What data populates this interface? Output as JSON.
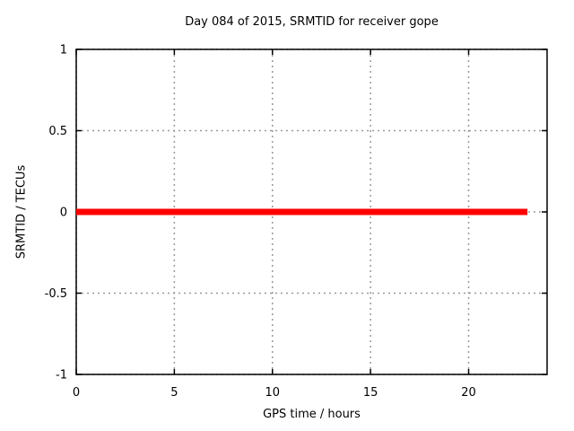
{
  "page": {
    "background": "#ffffff"
  },
  "chart_data": {
    "type": "line",
    "title": "Day 084 of 2015, SRMTID for receiver gope",
    "xlabel": "GPS time / hours",
    "ylabel": "SRMTID / TECUs",
    "xlim": [
      0,
      24
    ],
    "ylim": [
      -1,
      1
    ],
    "xticks": [
      0,
      5,
      10,
      15,
      20
    ],
    "xtick_labels": [
      "0",
      "5",
      "10",
      "15",
      "20"
    ],
    "yticks": [
      -1,
      -0.5,
      0,
      0.5,
      1
    ],
    "ytick_labels": [
      "-1",
      "-0.5",
      "0",
      "0.5",
      "1"
    ],
    "grid": true,
    "legend": "none",
    "colors": {
      "axis": "#000000",
      "grid": "#9a9a9a",
      "text": "#000000",
      "background": "#ffffff"
    },
    "series": [
      {
        "name": "SRMTID",
        "color": "#ff0000",
        "linewidth": 7,
        "x": [
          0,
          23
        ],
        "y": [
          0,
          0
        ]
      }
    ]
  }
}
